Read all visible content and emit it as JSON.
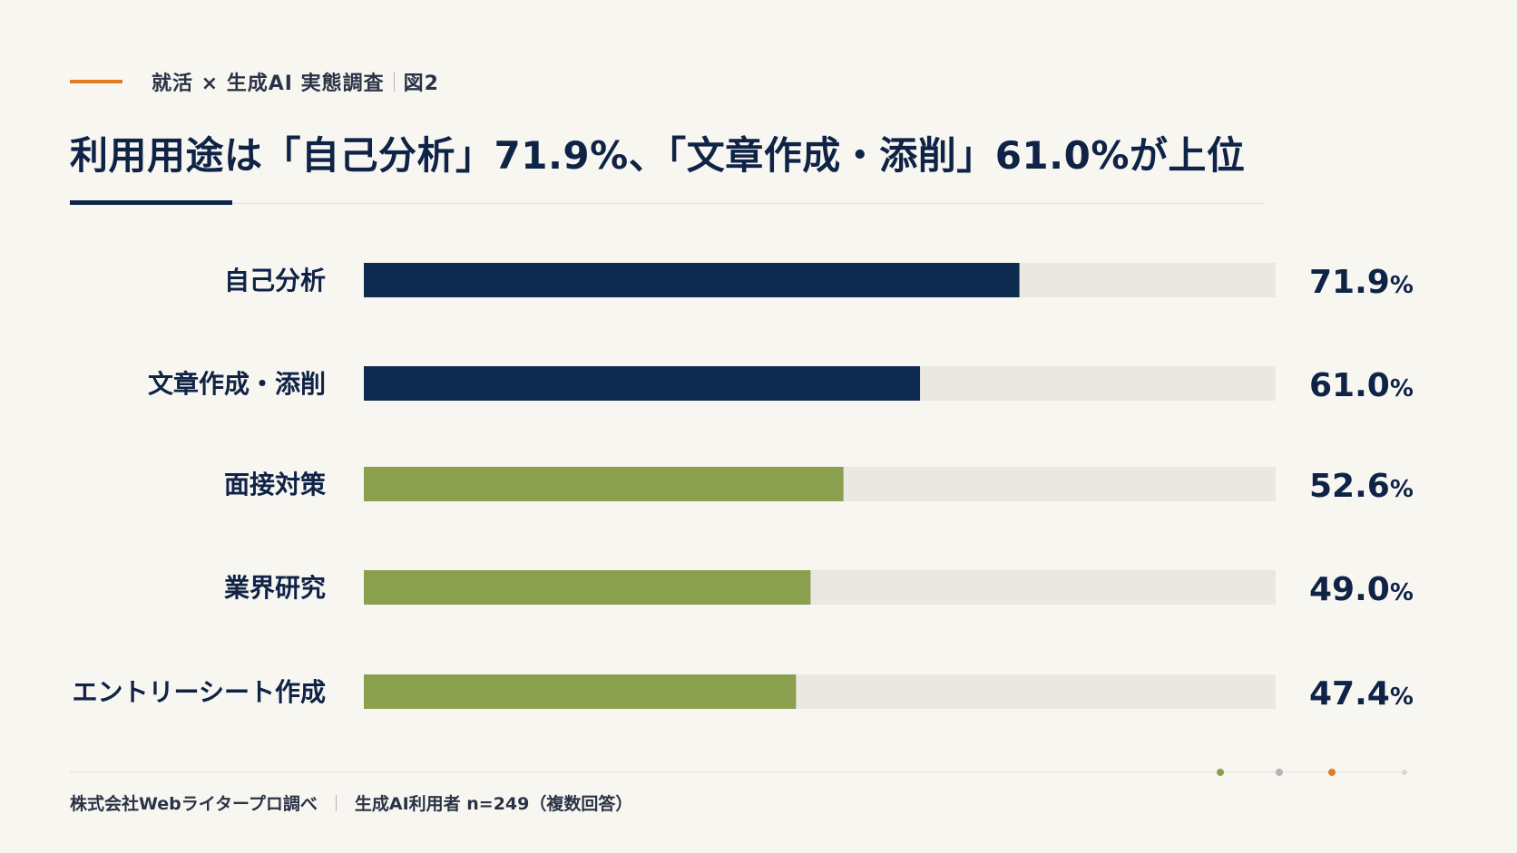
{
  "header": {
    "kicker": "就活 × 生成AI 実態調査",
    "figure_label": "図2",
    "title": "利用用途は「自己分析」71.9%、「文章作成・添削」61.0%が上位"
  },
  "chart_data": {
    "type": "bar",
    "orientation": "horizontal",
    "categories": [
      "自己分析",
      "文章作成・添削",
      "面接対策",
      "業界研究",
      "エントリーシート作成"
    ],
    "values": [
      71.9,
      61.0,
      52.6,
      49.0,
      47.4
    ],
    "labels": [
      "71.9",
      "61.0",
      "52.6",
      "49.0",
      "47.4"
    ],
    "unit": "%",
    "xlim": [
      0,
      100
    ],
    "bar_colors": [
      "#0f2a4f",
      "#0f2a4f",
      "#8aa04e",
      "#8aa04e",
      "#8aa04e"
    ],
    "track_color": "#ebe8e2",
    "grid": false,
    "legend": "none"
  },
  "footer": {
    "source": "株式会社Webライタープロ調べ",
    "note": "生成AI利用者 n=249（複数回答）"
  },
  "colors": {
    "background": "#f8f6f1",
    "navy": "#0f2347",
    "orange": "#e07d24",
    "green": "#8aa04e",
    "gray": "#b5b5b5"
  }
}
